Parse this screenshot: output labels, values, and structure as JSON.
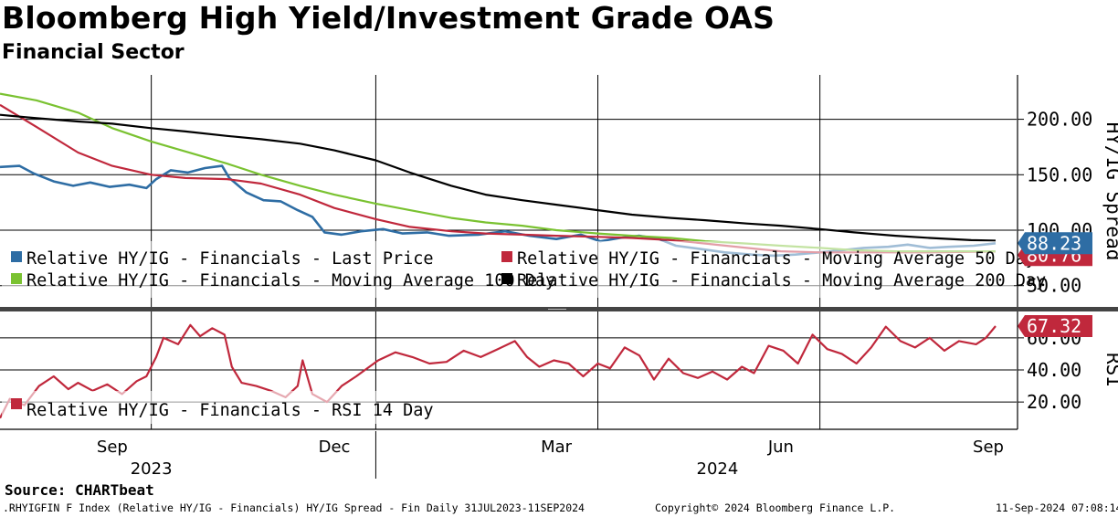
{
  "title": "Bloomberg High Yield/Investment Grade OAS",
  "subtitle": "Financial Sector",
  "source": "Source: CHARTbeat",
  "footer": {
    "ticker": ".RHYIGFIN F Index (Relative HY/IG - Financials) HY/IG Spread - Fin  Daily 31JUL2023-11SEP2024",
    "copyright": "Copyright© 2024 Bloomberg Finance L.P.",
    "timestamp": "11-Sep-2024 07:08:14"
  },
  "chart_data": [
    {
      "type": "line",
      "ylabel": "HY/IG Spread",
      "ylim": [
        30,
        240
      ],
      "yticks": [
        50,
        100,
        150,
        200
      ],
      "ytick_labels": [
        "50.00",
        "100.00",
        "150.00",
        "200.00"
      ],
      "grid": true,
      "legend_position": "bottom-left",
      "last_value_labels": [
        "88.23",
        "80.76"
      ],
      "series": [
        {
          "name": "Relative HY/IG - Financials - Last Price",
          "color": "#2e6da4",
          "points": [
            [
              "2023-07-31",
              157
            ],
            [
              "2023-08-08",
              158
            ],
            [
              "2023-08-14",
              151
            ],
            [
              "2023-08-22",
              144
            ],
            [
              "2023-08-30",
              140
            ],
            [
              "2023-09-06",
              143
            ],
            [
              "2023-09-14",
              139
            ],
            [
              "2023-09-22",
              141
            ],
            [
              "2023-09-29",
              138
            ],
            [
              "2023-10-03",
              146
            ],
            [
              "2023-10-09",
              154
            ],
            [
              "2023-10-16",
              152
            ],
            [
              "2023-10-23",
              156
            ],
            [
              "2023-10-30",
              158
            ],
            [
              "2023-11-02",
              147
            ],
            [
              "2023-11-09",
              134
            ],
            [
              "2023-11-16",
              127
            ],
            [
              "2023-11-23",
              126
            ],
            [
              "2023-11-30",
              118
            ],
            [
              "2023-12-06",
              112
            ],
            [
              "2023-12-11",
              98
            ],
            [
              "2023-12-18",
              96
            ],
            [
              "2023-12-26",
              99
            ],
            [
              "2024-01-04",
              101
            ],
            [
              "2024-01-12",
              97
            ],
            [
              "2024-01-22",
              98
            ],
            [
              "2024-01-31",
              95
            ],
            [
              "2024-02-12",
              96
            ],
            [
              "2024-02-23",
              99
            ],
            [
              "2024-03-04",
              95
            ],
            [
              "2024-03-15",
              92
            ],
            [
              "2024-03-25",
              96
            ],
            [
              "2024-04-02",
              90
            ],
            [
              "2024-04-10",
              93
            ],
            [
              "2024-04-18",
              95
            ],
            [
              "2024-04-26",
              92
            ],
            [
              "2024-05-03",
              86
            ],
            [
              "2024-05-13",
              83
            ],
            [
              "2024-05-23",
              80
            ],
            [
              "2024-06-03",
              78
            ],
            [
              "2024-06-12",
              77
            ],
            [
              "2024-06-21",
              78
            ],
            [
              "2024-07-01",
              80
            ],
            [
              "2024-07-10",
              82
            ],
            [
              "2024-07-19",
              84
            ],
            [
              "2024-07-29",
              85
            ],
            [
              "2024-08-06",
              87
            ],
            [
              "2024-08-15",
              84
            ],
            [
              "2024-08-23",
              85
            ],
            [
              "2024-09-02",
              86
            ],
            [
              "2024-09-11",
              88.23
            ]
          ]
        },
        {
          "name": "Relative HY/IG - Financials - Moving Average 50 Day",
          "color": "#c0283c",
          "points": [
            [
              "2023-07-31",
              213
            ],
            [
              "2023-08-15",
              193
            ],
            [
              "2023-09-01",
              170
            ],
            [
              "2023-09-15",
              158
            ],
            [
              "2023-10-01",
              150
            ],
            [
              "2023-10-15",
              147
            ],
            [
              "2023-11-01",
              146
            ],
            [
              "2023-11-15",
              142
            ],
            [
              "2023-12-01",
              132
            ],
            [
              "2023-12-15",
              120
            ],
            [
              "2024-01-01",
              110
            ],
            [
              "2024-01-15",
              103
            ],
            [
              "2024-02-01",
              99
            ],
            [
              "2024-02-15",
              97
            ],
            [
              "2024-03-01",
              96
            ],
            [
              "2024-03-15",
              95
            ],
            [
              "2024-04-01",
              94
            ],
            [
              "2024-04-15",
              93
            ],
            [
              "2024-05-01",
              91
            ],
            [
              "2024-05-15",
              88
            ],
            [
              "2024-06-01",
              84
            ],
            [
              "2024-06-15",
              81
            ],
            [
              "2024-07-01",
              80
            ],
            [
              "2024-07-15",
              80
            ],
            [
              "2024-08-01",
              80
            ],
            [
              "2024-08-15",
              80
            ],
            [
              "2024-09-11",
              80.76
            ]
          ]
        },
        {
          "name": "Relative HY/IG - Financials - Moving Average 100 Day",
          "color": "#7ac231",
          "points": [
            [
              "2023-07-31",
              223
            ],
            [
              "2023-08-15",
              217
            ],
            [
              "2023-09-01",
              206
            ],
            [
              "2023-09-15",
              192
            ],
            [
              "2023-10-01",
              180
            ],
            [
              "2023-10-15",
              171
            ],
            [
              "2023-11-01",
              160
            ],
            [
              "2023-11-15",
              150
            ],
            [
              "2023-12-01",
              140
            ],
            [
              "2023-12-15",
              132
            ],
            [
              "2024-01-01",
              124
            ],
            [
              "2024-01-15",
              118
            ],
            [
              "2024-02-01",
              111
            ],
            [
              "2024-02-15",
              107
            ],
            [
              "2024-03-01",
              104
            ],
            [
              "2024-03-15",
              100
            ],
            [
              "2024-04-01",
              97
            ],
            [
              "2024-04-15",
              95
            ],
            [
              "2024-05-01",
              93
            ],
            [
              "2024-05-15",
              90
            ],
            [
              "2024-06-01",
              88
            ],
            [
              "2024-06-15",
              86
            ],
            [
              "2024-07-01",
              84
            ],
            [
              "2024-07-15",
              82
            ],
            [
              "2024-08-01",
              81
            ],
            [
              "2024-08-15",
              81
            ],
            [
              "2024-09-11",
              81
            ]
          ]
        },
        {
          "name": "Relative HY/IG - Financials - Moving Average 200 Day",
          "color": "#000000",
          "points": [
            [
              "2023-07-31",
              204
            ],
            [
              "2023-08-15",
              201
            ],
            [
              "2023-09-01",
              198
            ],
            [
              "2023-09-15",
              196
            ],
            [
              "2023-10-01",
              192
            ],
            [
              "2023-10-15",
              189
            ],
            [
              "2023-11-01",
              185
            ],
            [
              "2023-11-15",
              182
            ],
            [
              "2023-12-01",
              178
            ],
            [
              "2023-12-15",
              172
            ],
            [
              "2024-01-01",
              163
            ],
            [
              "2024-01-15",
              152
            ],
            [
              "2024-02-01",
              140
            ],
            [
              "2024-02-15",
              132
            ],
            [
              "2024-03-01",
              127
            ],
            [
              "2024-03-15",
              123
            ],
            [
              "2024-04-01",
              118
            ],
            [
              "2024-04-15",
              114
            ],
            [
              "2024-05-01",
              111
            ],
            [
              "2024-05-15",
              109
            ],
            [
              "2024-06-01",
              106
            ],
            [
              "2024-06-15",
              104
            ],
            [
              "2024-07-01",
              101
            ],
            [
              "2024-07-15",
              98
            ],
            [
              "2024-08-01",
              95
            ],
            [
              "2024-08-15",
              93
            ],
            [
              "2024-09-01",
              91
            ],
            [
              "2024-09-11",
              90.5
            ]
          ]
        }
      ]
    },
    {
      "type": "line",
      "ylabel": "RSI",
      "ylim": [
        3,
        77
      ],
      "yticks": [
        20,
        40,
        60
      ],
      "ytick_labels": [
        "20.00",
        "40.00",
        "60.00"
      ],
      "grid": true,
      "legend_position": "bottom-left",
      "last_value_labels": [
        "67.32"
      ],
      "series": [
        {
          "name": "Relative HY/IG - Financials - RSI 14 Day",
          "color": "#c0283c",
          "points": [
            [
              "2023-07-31",
              10
            ],
            [
              "2023-08-04",
              22
            ],
            [
              "2023-08-10",
              18
            ],
            [
              "2023-08-16",
              30
            ],
            [
              "2023-08-22",
              36
            ],
            [
              "2023-08-28",
              28
            ],
            [
              "2023-09-01",
              32
            ],
            [
              "2023-09-07",
              27
            ],
            [
              "2023-09-13",
              31
            ],
            [
              "2023-09-19",
              25
            ],
            [
              "2023-09-25",
              33
            ],
            [
              "2023-09-29",
              36
            ],
            [
              "2023-10-03",
              48
            ],
            [
              "2023-10-06",
              60
            ],
            [
              "2023-10-12",
              56
            ],
            [
              "2023-10-17",
              68
            ],
            [
              "2023-10-21",
              61
            ],
            [
              "2023-10-26",
              66
            ],
            [
              "2023-10-31",
              62
            ],
            [
              "2023-11-03",
              42
            ],
            [
              "2023-11-07",
              32
            ],
            [
              "2023-11-13",
              30
            ],
            [
              "2023-11-19",
              27
            ],
            [
              "2023-11-25",
              23
            ],
            [
              "2023-11-30",
              30
            ],
            [
              "2023-12-02",
              46
            ],
            [
              "2023-12-06",
              25
            ],
            [
              "2023-12-12",
              20
            ],
            [
              "2023-12-18",
              30
            ],
            [
              "2023-12-24",
              36
            ],
            [
              "2024-01-02",
              46
            ],
            [
              "2024-01-09",
              51
            ],
            [
              "2024-01-16",
              48
            ],
            [
              "2024-01-23",
              44
            ],
            [
              "2024-01-30",
              45
            ],
            [
              "2024-02-06",
              52
            ],
            [
              "2024-02-13",
              48
            ],
            [
              "2024-02-20",
              53
            ],
            [
              "2024-02-27",
              58
            ],
            [
              "2024-03-03",
              48
            ],
            [
              "2024-03-08",
              42
            ],
            [
              "2024-03-14",
              46
            ],
            [
              "2024-03-20",
              44
            ],
            [
              "2024-03-26",
              36
            ],
            [
              "2024-04-01",
              44
            ],
            [
              "2024-04-06",
              41
            ],
            [
              "2024-04-12",
              54
            ],
            [
              "2024-04-18",
              49
            ],
            [
              "2024-04-24",
              34
            ],
            [
              "2024-04-30",
              47
            ],
            [
              "2024-05-06",
              38
            ],
            [
              "2024-05-12",
              35
            ],
            [
              "2024-05-18",
              39
            ],
            [
              "2024-05-24",
              34
            ],
            [
              "2024-05-30",
              42
            ],
            [
              "2024-06-04",
              38
            ],
            [
              "2024-06-10",
              55
            ],
            [
              "2024-06-16",
              52
            ],
            [
              "2024-06-22",
              44
            ],
            [
              "2024-06-28",
              62
            ],
            [
              "2024-07-04",
              53
            ],
            [
              "2024-07-10",
              50
            ],
            [
              "2024-07-16",
              44
            ],
            [
              "2024-07-22",
              54
            ],
            [
              "2024-07-28",
              67
            ],
            [
              "2024-08-03",
              58
            ],
            [
              "2024-08-09",
              54
            ],
            [
              "2024-08-15",
              60
            ],
            [
              "2024-08-21",
              52
            ],
            [
              "2024-08-27",
              58
            ],
            [
              "2024-09-03",
              56
            ],
            [
              "2024-09-07",
              60
            ],
            [
              "2024-09-11",
              67.32
            ]
          ]
        }
      ]
    }
  ],
  "x_axis": {
    "start": "2023-07-31",
    "end": "2024-09-11",
    "month_labels": [
      {
        "label": "Sep",
        "date": "2023-09-15"
      },
      {
        "label": "Dec",
        "date": "2023-12-15"
      },
      {
        "label": "Mar",
        "date": "2024-03-15"
      },
      {
        "label": "Jun",
        "date": "2024-06-15"
      },
      {
        "label": "Sep",
        "date": "2024-09-08"
      }
    ],
    "year_labels": [
      {
        "label": "2023",
        "date": "2023-10-01"
      },
      {
        "label": "2024",
        "date": "2024-05-20"
      }
    ],
    "gridline_dates": [
      "2023-10-01",
      "2024-01-01",
      "2024-04-01",
      "2024-07-01"
    ],
    "year_divider_date": "2024-01-01"
  }
}
